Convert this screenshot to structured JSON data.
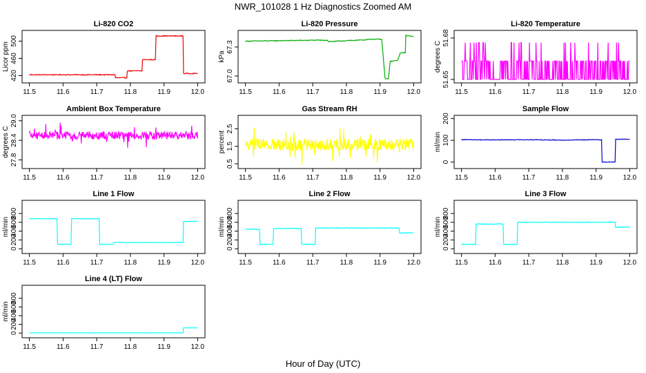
{
  "figure": {
    "title": "NWR_101028  1 Hz Diagnostics Zoomed AM",
    "xlabel": "Hour of Day (UTC)"
  },
  "chart_data": [
    {
      "type": "line",
      "title": "Li-820 CO2",
      "ylabel": "Licor ppm",
      "color": "#ee0000",
      "xlim": [
        11.5,
        12.0
      ],
      "ylim": [
        408,
        520
      ],
      "xticks": [
        "11.5",
        "11.6",
        "11.7",
        "11.8",
        "11.9",
        "12.0"
      ],
      "yticks": [
        "420",
        "460",
        "500"
      ],
      "noise": 1,
      "nsamples": 300,
      "x": [
        11.5,
        11.755,
        11.755,
        11.79,
        11.79,
        11.835,
        11.835,
        11.875,
        11.875,
        11.958,
        11.958,
        12.0
      ],
      "y": [
        422,
        422,
        415,
        415,
        431,
        431,
        457,
        457,
        512,
        512,
        425,
        425
      ]
    },
    {
      "type": "line",
      "title": "Li-820 Pressure",
      "ylabel": "kPa",
      "color": "#00aa00",
      "xlim": [
        11.5,
        12.0
      ],
      "ylim": [
        66.95,
        67.45
      ],
      "xticks": [
        "11.5",
        "11.6",
        "11.7",
        "11.8",
        "11.9",
        "12.0"
      ],
      "yticks": [
        "67.0",
        "67.3"
      ],
      "noise": 0.004,
      "nsamples": 300,
      "x": [
        11.5,
        11.6,
        11.7,
        11.745,
        11.745,
        11.8,
        11.86,
        11.86,
        11.905,
        11.915,
        11.925,
        11.93,
        11.93,
        11.95,
        11.955,
        11.96,
        11.975,
        11.975,
        12.0
      ],
      "y": [
        67.36,
        67.365,
        67.37,
        67.37,
        67.355,
        67.365,
        67.375,
        67.38,
        67.38,
        66.97,
        66.97,
        67.15,
        67.15,
        67.16,
        67.18,
        67.24,
        67.24,
        67.42,
        67.41
      ]
    },
    {
      "type": "line",
      "title": "Li-820 Temperature",
      "ylabel": "degrees C",
      "color": "#ff00ff",
      "xlim": [
        11.5,
        12.0
      ],
      "ylim": [
        51.649,
        51.684
      ],
      "xticks": [
        "11.5",
        "11.6",
        "11.7",
        "11.8",
        "11.9",
        "12.0"
      ],
      "yticks": [
        "51.65",
        "51.68"
      ],
      "pattern": "digital",
      "levels": [
        51.65,
        51.6633,
        51.6767
      ],
      "nsamples": 360,
      "x": [
        11.5,
        12.0
      ],
      "y": [
        51.6633,
        51.6633
      ]
    },
    {
      "type": "line",
      "title": "Ambient Box Temperature",
      "ylabel": "degrees C",
      "color": "#ff00ff",
      "xlim": [
        11.5,
        12.0
      ],
      "ylim": [
        27.6,
        29.1
      ],
      "xticks": [
        "11.5",
        "11.6",
        "11.7",
        "11.8",
        "11.9",
        "12.0"
      ],
      "yticks": [
        "27.8",
        "28.4",
        "29.0"
      ],
      "noise": 0.12,
      "spikes": 0.35,
      "nsamples": 400,
      "x": [
        11.5,
        12.0
      ],
      "y": [
        28.55,
        28.55
      ]
    },
    {
      "type": "line",
      "title": "Gas Stream RH",
      "ylabel": "percent",
      "color": "#ffff00",
      "xlim": [
        11.5,
        12.0
      ],
      "ylim": [
        0.35,
        3.15
      ],
      "xticks": [
        "11.5",
        "11.6",
        "11.7",
        "11.8",
        "11.9",
        "12.0"
      ],
      "yticks": [
        "0.5",
        "1.5",
        "2.5"
      ],
      "noise": 0.35,
      "spikes": 1.1,
      "nsamples": 400,
      "x": [
        11.5,
        12.0
      ],
      "y": [
        1.6,
        1.6
      ]
    },
    {
      "type": "line",
      "title": "Sample Flow",
      "ylabel": "ml/min",
      "color": "#0000cc",
      "xlim": [
        11.5,
        12.0
      ],
      "ylim": [
        -20,
        205
      ],
      "xticks": [
        "11.5",
        "11.6",
        "11.7",
        "11.8",
        "11.9",
        "12.0"
      ],
      "yticks": [
        "0",
        "100",
        "200"
      ],
      "noise": 1.5,
      "nsamples": 300,
      "x": [
        11.5,
        11.6,
        11.7,
        11.8,
        11.918,
        11.918,
        11.958,
        11.958,
        12.0
      ],
      "y": [
        103,
        102,
        103,
        101,
        103,
        0,
        0,
        105,
        105
      ]
    },
    {
      "type": "line",
      "title": "Line 1 Flow",
      "ylabel": "ml/min",
      "color": "#00ffff",
      "xlim": [
        11.5,
        12.0
      ],
      "ylim": [
        -60,
        1050
      ],
      "xticks": [
        "11.5",
        "11.6",
        "11.7",
        "11.8",
        "11.9",
        "12.0"
      ],
      "yticks": [
        "0",
        "200",
        "400",
        "600",
        "800"
      ],
      "noise": 6,
      "nsamples": 300,
      "x": [
        11.5,
        11.582,
        11.582,
        11.625,
        11.625,
        11.708,
        11.708,
        11.75,
        11.75,
        11.958,
        11.958,
        12.0
      ],
      "y": [
        680,
        680,
        100,
        100,
        680,
        680,
        100,
        100,
        140,
        140,
        620,
        620
      ]
    },
    {
      "type": "line",
      "title": "Line 2 Flow",
      "ylabel": "ml/min",
      "color": "#00ffff",
      "xlim": [
        11.5,
        12.0
      ],
      "ylim": [
        -60,
        1050
      ],
      "xticks": [
        "11.5",
        "11.6",
        "11.7",
        "11.8",
        "11.9",
        "12.0"
      ],
      "yticks": [
        "0",
        "200",
        "400",
        "600",
        "800"
      ],
      "noise": 8,
      "nsamples": 300,
      "x": [
        11.5,
        11.542,
        11.542,
        11.582,
        11.582,
        11.667,
        11.667,
        11.708,
        11.708,
        11.958,
        11.958,
        12.0
      ],
      "y": [
        440,
        440,
        100,
        100,
        460,
        460,
        100,
        100,
        470,
        470,
        360,
        360
      ]
    },
    {
      "type": "line",
      "title": "Line 3 Flow",
      "ylabel": "ml/min",
      "color": "#00ffff",
      "xlim": [
        11.5,
        12.0
      ],
      "ylim": [
        -60,
        1050
      ],
      "xticks": [
        "11.5",
        "11.6",
        "11.7",
        "11.8",
        "11.9",
        "12.0"
      ],
      "yticks": [
        "0",
        "200",
        "400",
        "600",
        "800"
      ],
      "noise": 8,
      "nsamples": 300,
      "x": [
        11.5,
        11.542,
        11.542,
        11.625,
        11.625,
        11.667,
        11.667,
        11.958,
        11.958,
        12.0
      ],
      "y": [
        100,
        100,
        560,
        560,
        100,
        100,
        600,
        600,
        490,
        490
      ]
    },
    {
      "type": "line",
      "title": "Line 4 (LT) Flow",
      "ylabel": "ml/min",
      "color": "#00ffff",
      "xlim": [
        11.5,
        12.0
      ],
      "ylim": [
        -60,
        1050
      ],
      "xticks": [
        "11.5",
        "11.6",
        "11.7",
        "11.8",
        "11.9",
        "12.0"
      ],
      "yticks": [
        "0",
        "200",
        "400",
        "600",
        "800"
      ],
      "noise": 2,
      "nsamples": 300,
      "x": [
        11.5,
        11.958,
        11.958,
        12.0
      ],
      "y": [
        5,
        5,
        120,
        120
      ]
    }
  ]
}
